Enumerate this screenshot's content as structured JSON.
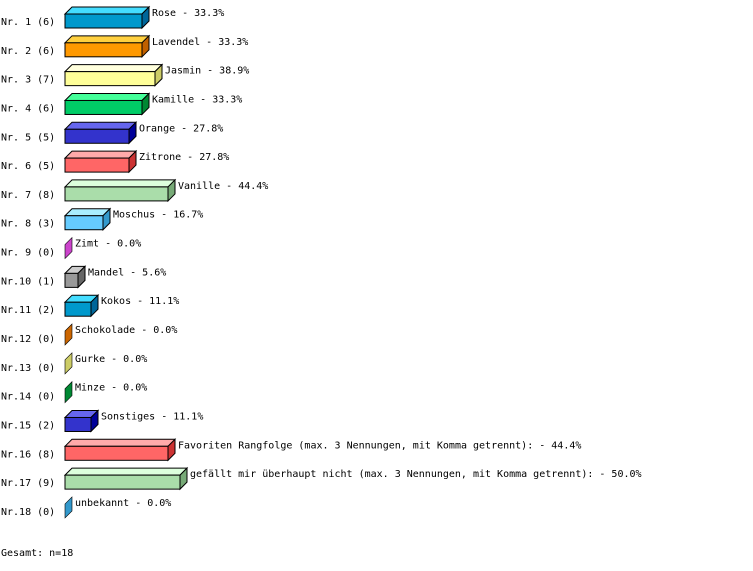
{
  "chart_data": {
    "type": "bar",
    "orientation": "horizontal",
    "style": "3d",
    "total_label": "Gesamt: n=18",
    "rows": [
      {
        "rank": "Nr. 1",
        "count": 6,
        "label": "Rose",
        "percent": "33.3%",
        "colors": [
          "#0099cc",
          "#44ddff",
          "#006699"
        ]
      },
      {
        "rank": "Nr. 2",
        "count": 6,
        "label": "Lavendel",
        "percent": "33.3%",
        "colors": [
          "#ff9900",
          "#ffd040",
          "#c06000"
        ]
      },
      {
        "rank": "Nr. 3",
        "count": 7,
        "label": "Jasmin",
        "percent": "38.9%",
        "colors": [
          "#ffff99",
          "#ffffdd",
          "#cccc66"
        ]
      },
      {
        "rank": "Nr. 4",
        "count": 6,
        "label": "Kamille",
        "percent": "33.3%",
        "colors": [
          "#00cc66",
          "#44ff99",
          "#008833"
        ]
      },
      {
        "rank": "Nr. 5",
        "count": 5,
        "label": "Orange",
        "percent": "27.8%",
        "colors": [
          "#3333cc",
          "#6666ee",
          "#000099"
        ]
      },
      {
        "rank": "Nr. 6",
        "count": 5,
        "label": "Zitrone",
        "percent": "27.8%",
        "colors": [
          "#ff6666",
          "#ffaaaa",
          "#cc3333"
        ]
      },
      {
        "rank": "Nr. 7",
        "count": 8,
        "label": "Vanille",
        "percent": "44.4%",
        "colors": [
          "#aaddaa",
          "#ddffdd",
          "#77aa77"
        ]
      },
      {
        "rank": "Nr. 8",
        "count": 3,
        "label": "Moschus",
        "percent": "16.7%",
        "colors": [
          "#66ccff",
          "#aaeeff",
          "#3399cc"
        ]
      },
      {
        "rank": "Nr. 9",
        "count": 0,
        "label": "Zimt",
        "percent": "0.0%",
        "colors": [
          "#cc44cc",
          "#ee88ee",
          "#cc44cc"
        ]
      },
      {
        "rank": "Nr.10",
        "count": 1,
        "label": "Mandel",
        "percent": "5.6%",
        "colors": [
          "#999999",
          "#cccccc",
          "#666666"
        ]
      },
      {
        "rank": "Nr.11",
        "count": 2,
        "label": "Kokos",
        "percent": "11.1%",
        "colors": [
          "#0099cc",
          "#44ddff",
          "#006699"
        ]
      },
      {
        "rank": "Nr.12",
        "count": 0,
        "label": "Schokolade",
        "percent": "0.0%",
        "colors": [
          "#cc6600",
          "#ff9933",
          "#cc6600"
        ]
      },
      {
        "rank": "Nr.13",
        "count": 0,
        "label": "Gurke",
        "percent": "0.0%",
        "colors": [
          "#cccc66",
          "#eeee99",
          "#cccc66"
        ]
      },
      {
        "rank": "Nr.14",
        "count": 0,
        "label": "Minze",
        "percent": "0.0%",
        "colors": [
          "#008833",
          "#44ff99",
          "#008833"
        ]
      },
      {
        "rank": "Nr.15",
        "count": 2,
        "label": "Sonstiges",
        "percent": "11.1%",
        "colors": [
          "#3333cc",
          "#6666ee",
          "#000099"
        ]
      },
      {
        "rank": "Nr.16",
        "count": 8,
        "label": "Favoriten Rangfolge (max. 3 Nennungen, mit Komma getrennt):",
        "percent": "44.4%",
        "colors": [
          "#ff6666",
          "#ffaaaa",
          "#cc3333"
        ]
      },
      {
        "rank": "Nr.17",
        "count": 9,
        "label": "gefällt mir überhaupt nicht (max. 3 Nennungen, mit Komma getrennt):",
        "percent": "50.0%",
        "colors": [
          "#aaddaa",
          "#ddffdd",
          "#77aa77"
        ]
      },
      {
        "rank": "Nr.18",
        "count": 0,
        "label": "unbekannt",
        "percent": "0.0%",
        "colors": [
          "#3399cc",
          "#66ccff",
          "#3399cc"
        ]
      }
    ]
  }
}
